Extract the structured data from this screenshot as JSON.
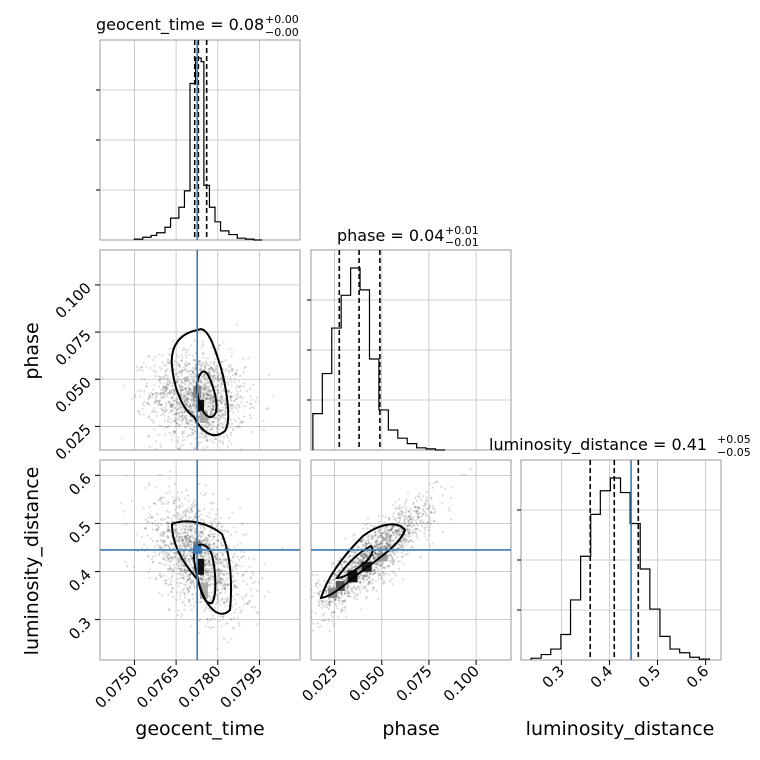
{
  "chart_data": {
    "type": "corner",
    "parameters": [
      "geocent_time",
      "phase",
      "luminosity_distance"
    ],
    "colors": {
      "truth": "#3c78b4",
      "hist": "#000000",
      "grid": "#c0c0c0",
      "frame": "#999999"
    },
    "grid": true,
    "truths": {
      "geocent_time": 0.07726,
      "phase": null,
      "luminosity_distance": 0.445
    },
    "titles": {
      "geocent_time": {
        "main": "geocent_time = 0.08",
        "plus": "+0.00",
        "minus": "−0.00"
      },
      "phase": {
        "main": "phase = 0.04",
        "plus": "+0.01",
        "minus": "−0.01"
      },
      "luminosity_distance": {
        "main": "luminosity_distance = 0.41",
        "plus": "+0.05",
        "minus": "−0.05"
      }
    },
    "ranges": {
      "geocent_time": [
        0.07376,
        0.08096
      ],
      "phase": [
        0.0125,
        0.1185
      ],
      "luminosity_distance": [
        0.216,
        0.632
      ]
    },
    "ticks": {
      "geocent_time": {
        "values": [
          0.075,
          0.0765,
          0.078,
          0.0795
        ],
        "labels": [
          "0.0750",
          "0.0765",
          "0.0780",
          "0.0795"
        ]
      },
      "phase": {
        "values": [
          0.025,
          0.05,
          0.075,
          0.1
        ],
        "labels": [
          "0.025",
          "0.050",
          "0.075",
          "0.100"
        ]
      },
      "luminosity_distance": {
        "values": [
          0.3,
          0.4,
          0.5,
          0.6
        ],
        "labels": [
          "0.3",
          "0.4",
          "0.5",
          "0.6"
        ]
      }
    },
    "quantiles": {
      "geocent_time": [
        0.07717,
        0.0773,
        0.0776
      ],
      "phase": [
        0.0275,
        0.038,
        0.049
      ],
      "luminosity_distance": [
        0.36,
        0.41,
        0.46
      ]
    },
    "histograms": {
      "geocent_time": {
        "edges": [
          0.075,
          0.0753,
          0.0756,
          0.0758,
          0.0761,
          0.0763,
          0.0766,
          0.0768,
          0.077,
          0.0772,
          0.0774,
          0.0775,
          0.0777,
          0.0779,
          0.0781,
          0.0784,
          0.0787,
          0.079,
          0.0793,
          0.0796
        ],
        "counts": [
          0.005,
          0.015,
          0.025,
          0.04,
          0.07,
          0.12,
          0.18,
          0.27,
          0.86,
          1.0,
          0.98,
          0.3,
          0.18,
          0.1,
          0.05,
          0.03,
          0.01,
          0.005,
          0
        ]
      },
      "phase": {
        "edges": [
          0.0135,
          0.0185,
          0.0235,
          0.0285,
          0.0335,
          0.0385,
          0.0435,
          0.0485,
          0.0535,
          0.0585,
          0.0635,
          0.0685,
          0.0735,
          0.0785,
          0.0835
        ],
        "counts": [
          0.2,
          0.42,
          0.67,
          0.85,
          1.0,
          0.88,
          0.5,
          0.22,
          0.11,
          0.065,
          0.035,
          0.012,
          0.006,
          0
        ]
      },
      "luminosity_distance": {
        "edges": [
          0.237,
          0.258,
          0.278,
          0.299,
          0.319,
          0.34,
          0.361,
          0.381,
          0.402,
          0.423,
          0.443,
          0.464,
          0.484,
          0.505,
          0.526,
          0.546,
          0.567,
          0.587,
          0.608
        ],
        "counts": [
          0.01,
          0.03,
          0.06,
          0.14,
          0.33,
          0.57,
          0.8,
          0.93,
          1.0,
          0.92,
          0.75,
          0.5,
          0.28,
          0.13,
          0.06,
          0.04,
          0.015,
          0.005
        ]
      }
    }
  }
}
